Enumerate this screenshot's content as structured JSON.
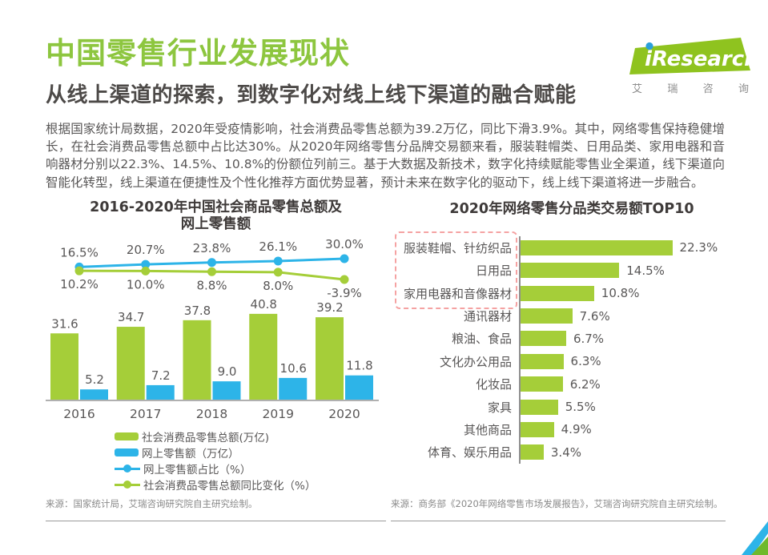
{
  "header": {
    "title": "中国零售行业发展现状",
    "subtitle": "从线上渠道的探索，到数字化对线上线下渠道的融合赋能",
    "logo": {
      "brand": "iResearch",
      "brand_cn": "艾瑞咨询"
    }
  },
  "intro": {
    "text": "根据国家统计局数据，2020年受疫情影响，社会消费品零售总额为39.2万亿，同比下滑3.9%。其中，网络零售保持稳健增长，在社会消费品零售总额中占比达30%。从2020年网络零售分品牌交易额来看，服装鞋帽类、日用品类、家用电器和音响器材分别以22.3%、14.5%、10.8%的份额位列前三。基于大数据及新技术，数字化持续赋能零售业全渠道，线下渠道向智能化转型，线上渠道在便捷性及个性化推荐方面优势显著，预计未来在数字化的驱动下，线上线下渠道将进一步融合。"
  },
  "colors": {
    "green": "#a5ce39",
    "blue": "#2db4e8",
    "title_green": "#8dc63f",
    "logo_green": "#8fc31f",
    "logo_dot_blue": "#2ba0da",
    "dashed_box_red": "#f5a2a2"
  },
  "charts": {
    "left": {
      "title_line1": "2016-2020年中国社会商品零售总额及",
      "title_line2": "网上零售额",
      "source": "来源：国家统计局，艾瑞咨询研究院自主研究绘制。"
    },
    "right": {
      "source": "来源：商务部《2020年网络零售市场发展报告》，艾瑞咨询研究院自主研究绘制。"
    }
  },
  "chart_data": [
    {
      "type": "bar",
      "subtype": "grouped-bars-with-lines",
      "title": "2016-2020年中国社会商品零售总额及网上零售额",
      "categories": [
        "2016",
        "2017",
        "2018",
        "2019",
        "2020"
      ],
      "series": [
        {
          "name": "社会消费品零售总额(万亿)",
          "type": "bar",
          "color": "#a5ce39",
          "values": [
            31.6,
            34.7,
            37.8,
            40.8,
            39.2
          ]
        },
        {
          "name": "网上零售额（万亿）",
          "type": "bar",
          "color": "#2db4e8",
          "values": [
            5.2,
            7.2,
            9.0,
            10.6,
            11.8
          ]
        },
        {
          "name": "网上零售额占比（%）",
          "type": "line",
          "color": "#2db4e8",
          "unit": "%",
          "values": [
            16.5,
            20.7,
            23.8,
            26.1,
            30.0
          ]
        },
        {
          "name": "社会消费品零售总额同比变化（%）",
          "type": "line",
          "color": "#a5ce39",
          "unit": "%",
          "values": [
            10.2,
            10.0,
            8.8,
            8.0,
            -3.9
          ]
        }
      ],
      "legend_position": "bottom",
      "grid": false,
      "data_labels": true
    },
    {
      "type": "bar",
      "orientation": "horizontal",
      "title": "2020年网络零售分品类交易额TOP10",
      "categories": [
        "服装鞋帽、针纺织品",
        "日用品",
        "家用电器和音像器材",
        "通讯器材",
        "粮油、食品",
        "文化办公用品",
        "化妆品",
        "家具",
        "其他商品",
        "体育、娱乐用品"
      ],
      "values": [
        22.3,
        14.5,
        10.8,
        7.6,
        6.7,
        6.3,
        6.2,
        5.5,
        4.9,
        3.4
      ],
      "unit": "%",
      "xlim": [
        0,
        25
      ],
      "grid": false,
      "data_labels": true,
      "highlighted_top3_box": true
    }
  ]
}
